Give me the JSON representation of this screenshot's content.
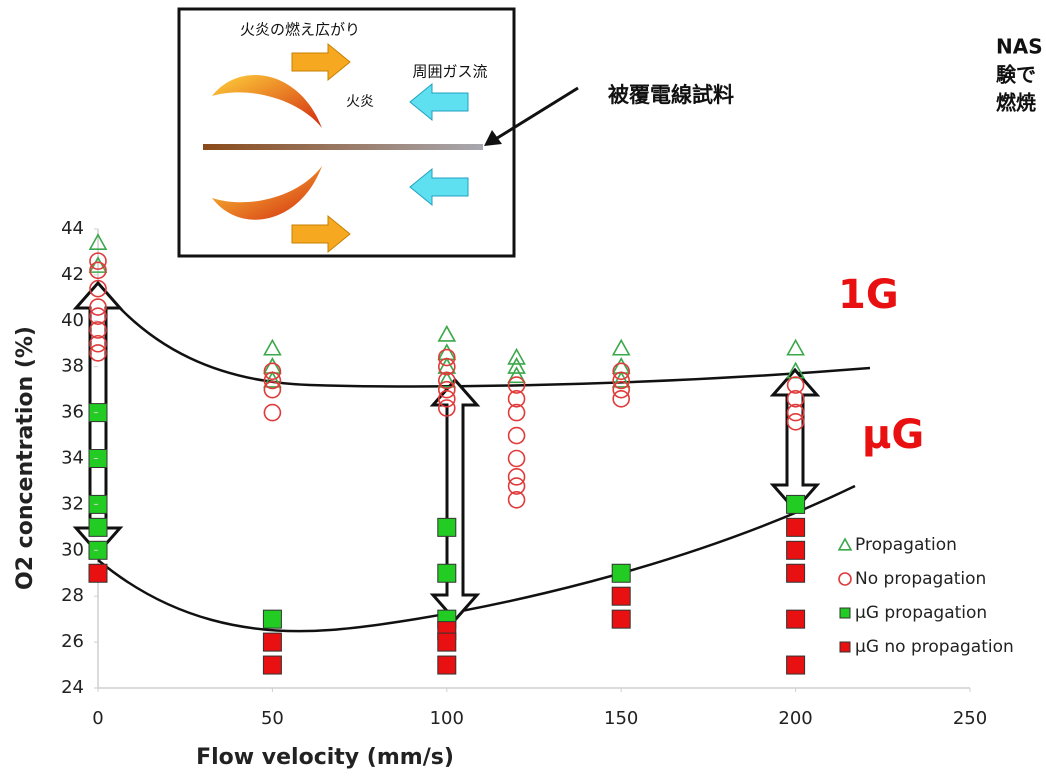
{
  "chart_data": {
    "type": "scatter",
    "x_label": "Flow velocity (mm/s)",
    "y_label": "O2 concentration (%)",
    "xlim": [
      0,
      250
    ],
    "xticks": [
      0,
      50,
      100,
      150,
      200,
      250
    ],
    "ylim": [
      24,
      44
    ],
    "yticks": [
      24,
      26,
      28,
      30,
      32,
      34,
      36,
      38,
      40,
      42,
      44
    ],
    "grid": false,
    "legend": "lower right",
    "annotations": [
      "火炎の燃え広がり",
      "周囲ガス流",
      "火炎",
      "被覆電線試料",
      "1G",
      "μG",
      "NAS",
      "験で",
      "燃焼"
    ],
    "series": [
      {
        "name": "Propagation",
        "color": "#3aa84a",
        "marker": "triangle-open",
        "x": [
          0,
          0,
          50,
          50,
          50,
          100,
          100,
          100,
          100,
          120,
          120,
          120,
          150,
          150,
          150,
          200,
          200
        ],
        "values": [
          43.4,
          42.4,
          38.8,
          38.0,
          37.4,
          39.4,
          38.6,
          38.0,
          37.4,
          38.4,
          38.0,
          37.6,
          38.8,
          38.0,
          37.4,
          38.8,
          37.8
        ]
      },
      {
        "name": "No propagation",
        "color": "#e03a3a",
        "marker": "circle-open",
        "x": [
          0,
          0,
          0,
          0,
          0,
          0,
          0,
          0,
          50,
          50,
          50,
          50,
          100,
          100,
          100,
          100,
          100,
          100,
          120,
          120,
          120,
          120,
          120,
          120,
          120,
          120,
          150,
          150,
          150,
          150,
          200,
          200,
          200,
          200
        ],
        "values": [
          42.6,
          42.2,
          41.4,
          40.6,
          40.2,
          39.6,
          39.0,
          38.6,
          37.8,
          37.4,
          37.0,
          36.0,
          38.4,
          38.0,
          37.4,
          37.0,
          36.6,
          36.2,
          37.2,
          36.6,
          36.0,
          35.0,
          34.0,
          33.2,
          32.8,
          32.2,
          37.8,
          37.4,
          37.0,
          36.6,
          37.2,
          36.6,
          36.0,
          35.6
        ]
      },
      {
        "name": "μG propagation",
        "color": "#22cc22",
        "marker": "square",
        "x": [
          0,
          0,
          0,
          0,
          0,
          50,
          100,
          100,
          100,
          150,
          200
        ],
        "values": [
          36,
          34,
          32,
          31,
          30,
          27,
          31,
          29,
          27,
          29,
          32
        ]
      },
      {
        "name": "μG no propagation",
        "color": "#e81010",
        "marker": "square",
        "x": [
          0,
          50,
          50,
          100,
          100,
          100,
          150,
          150,
          200,
          200,
          200,
          200,
          200
        ],
        "values": [
          29,
          26,
          25,
          26.5,
          26,
          25,
          28,
          27,
          31,
          30,
          29,
          27,
          25
        ]
      }
    ]
  }
}
